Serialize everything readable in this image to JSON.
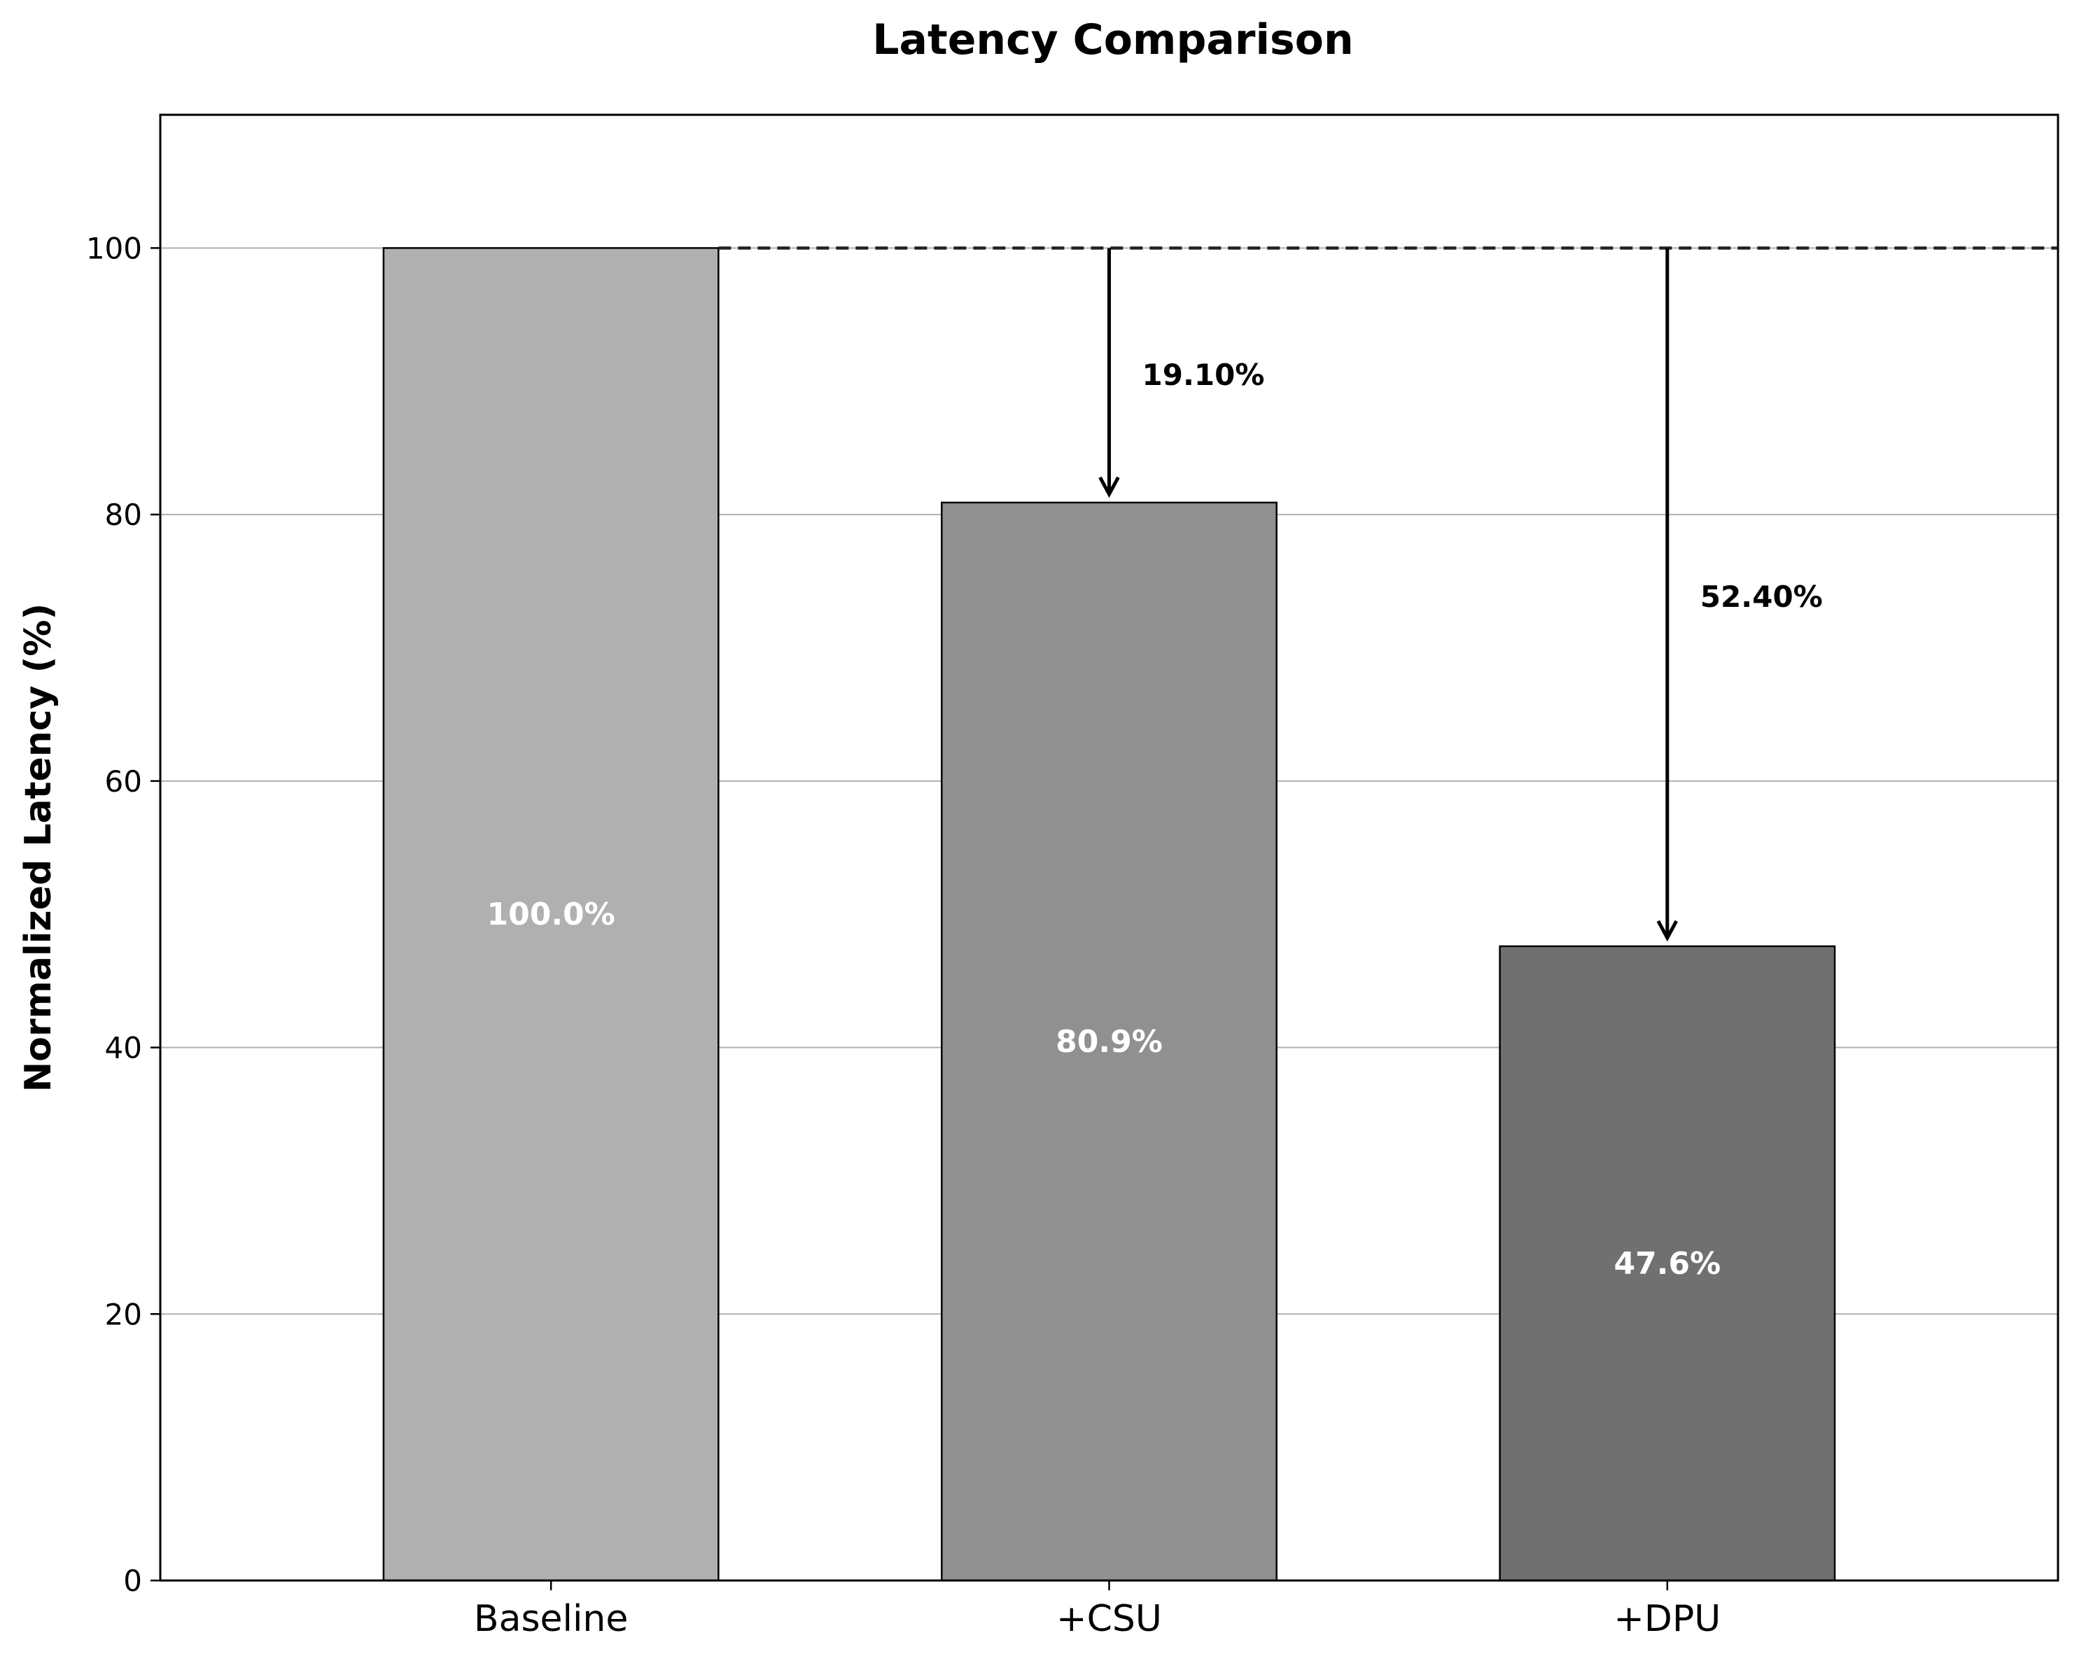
{
  "chart_data": {
    "type": "bar",
    "title": "Latency Comparison",
    "xlabel": "",
    "ylabel": "Normalized Latency (%)",
    "categories": [
      "Baseline",
      "+CSU",
      "+DPU"
    ],
    "values": [
      100.0,
      80.9,
      47.6
    ],
    "value_labels": [
      "100.0%",
      "80.9%",
      "47.6%"
    ],
    "bar_colors": [
      "#b0b0b0",
      "#909090",
      "#707070"
    ],
    "edge_color": "#000000",
    "ylim": [
      0,
      110
    ],
    "yticks": [
      0,
      20,
      40,
      60,
      80,
      100
    ],
    "grid": "horizontal",
    "baseline_reference": 100,
    "reductions": [
      {
        "category": "+CSU",
        "from": 100,
        "to": 80.9,
        "label": "19.10%"
      },
      {
        "category": "+DPU",
        "from": 100,
        "to": 47.6,
        "label": "52.40%"
      }
    ]
  }
}
